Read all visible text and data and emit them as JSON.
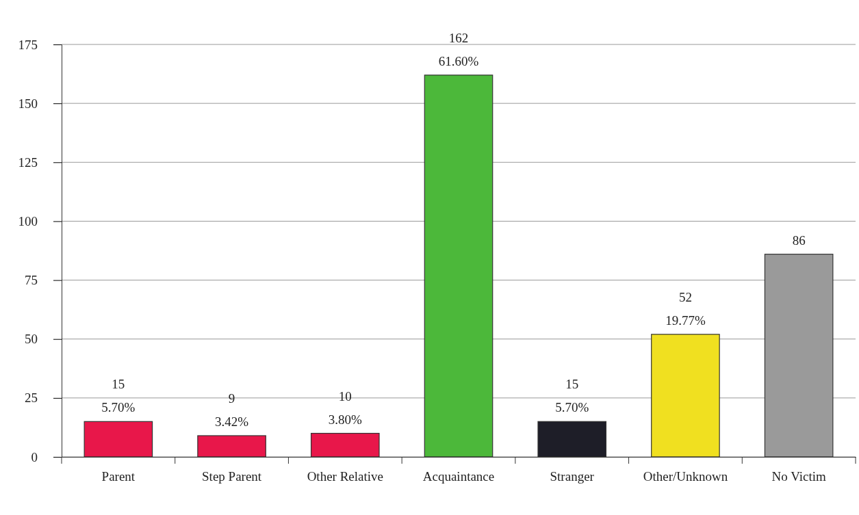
{
  "chart_data": {
    "type": "bar",
    "categories": [
      "Parent",
      "Step Parent",
      "Other Relative",
      "Acquaintance",
      "Stranger",
      "Other/Unknown",
      "No Victim"
    ],
    "values": [
      15,
      9,
      10,
      162,
      15,
      52,
      86
    ],
    "colors": [
      "#e8174a",
      "#e8174a",
      "#e8174a",
      "#4cb83a",
      "#1e1e28",
      "#f0e020",
      "#9a9a9a"
    ],
    "ylim": [
      0,
      175
    ],
    "yticks": [
      0,
      25,
      50,
      75,
      100,
      125,
      150,
      175
    ],
    "grid": "y",
    "data_labels": true,
    "annotations": [
      {
        "text": "5.70%",
        "x": "Parent",
        "y": 15
      },
      {
        "text": "3.42%",
        "x": "Step Parent",
        "y": 9
      },
      {
        "text": "3.80%",
        "x": "Other Relative",
        "y": 10
      },
      {
        "text": "61.60%",
        "x": "Acquaintance",
        "y": 162
      },
      {
        "text": "5.70%",
        "x": "Stranger",
        "y": 15
      },
      {
        "text": "19.77%",
        "x": "Other/Unknown",
        "y": 52
      }
    ]
  }
}
